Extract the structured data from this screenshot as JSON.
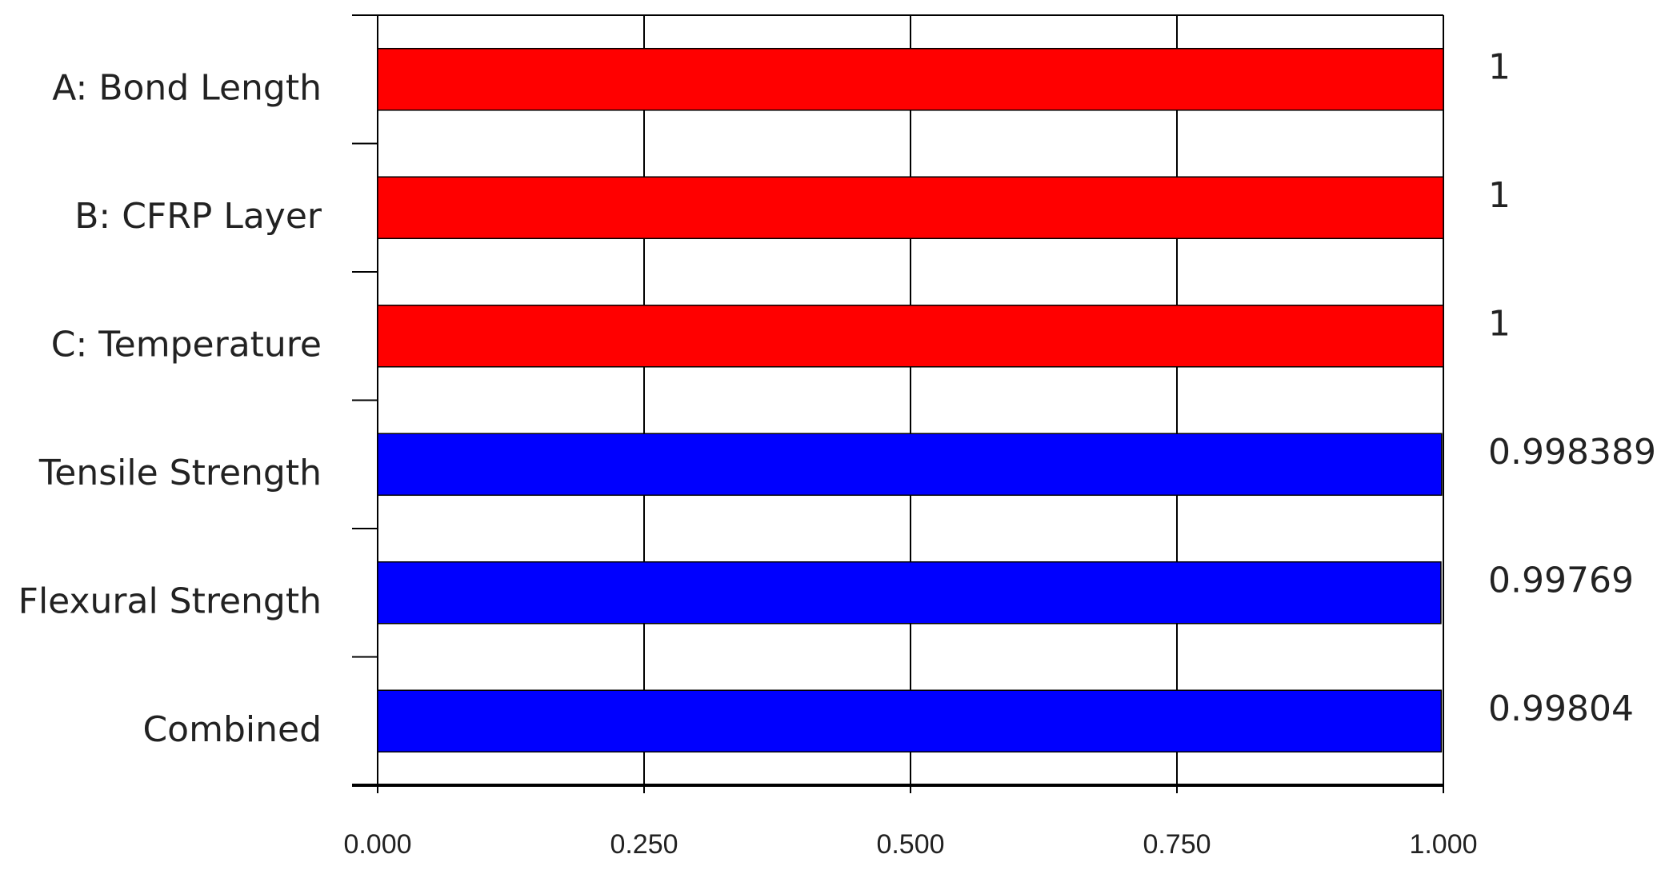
{
  "chart_data": {
    "type": "bar",
    "orientation": "horizontal",
    "categories": [
      "A: Bond Length",
      "B: CFRP Layer",
      "C: Temperature",
      "Tensile Strength",
      "Flexural Strength",
      "Combined"
    ],
    "values": [
      1,
      1,
      1,
      0.998389,
      0.99769,
      0.99804
    ],
    "colors": [
      "#ff0000",
      "#ff0000",
      "#ff0000",
      "#0000ff",
      "#0000ff",
      "#0000ff"
    ],
    "xlim": [
      0,
      1
    ],
    "xticks": [
      {
        "value": 0,
        "label": "0.000"
      },
      {
        "value": 0.25,
        "label": "0.250"
      },
      {
        "value": 0.5,
        "label": "0.500"
      },
      {
        "value": 0.75,
        "label": "0.750"
      },
      {
        "value": 1,
        "label": "1.000"
      }
    ],
    "grid": true
  }
}
